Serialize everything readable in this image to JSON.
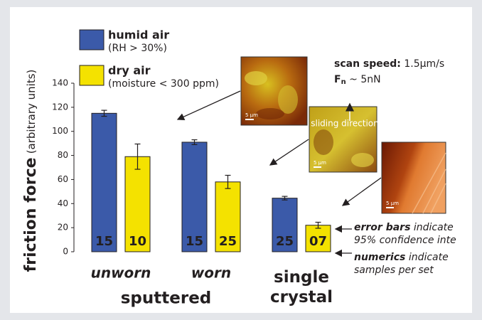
{
  "chart_data": {
    "type": "bar",
    "ylabel": "friction force",
    "ylabel_note": "(arbitrary units)",
    "categories": [
      "unworn",
      "worn",
      null
    ],
    "groups": [
      {
        "label": "sputtered",
        "categories": [
          0,
          1
        ]
      },
      {
        "label": "single crystal",
        "categories": [
          2
        ]
      }
    ],
    "series": [
      {
        "name": "humid air",
        "note": "(RH > 30%)",
        "color": "#3b5aa9",
        "values": [
          115,
          91,
          44.5
        ],
        "errors": [
          2.5,
          2,
          1.5
        ],
        "samples": [
          "15",
          "15",
          "25"
        ]
      },
      {
        "name": "dry air",
        "note": "(moisture < 300 ppm)",
        "color": "#f4e200",
        "values": [
          79,
          58,
          22
        ],
        "errors": [
          10.5,
          5.5,
          2.5
        ],
        "samples": [
          "10",
          "25",
          "07"
        ]
      }
    ],
    "ylim": [
      0,
      140
    ],
    "yticks": [
      0,
      20,
      40,
      60,
      80,
      100,
      120,
      140
    ],
    "annotations": {
      "scan_speed": {
        "label": "scan speed:",
        "value": "1.5µm/s"
      },
      "force": {
        "label": "F",
        "sub": "n",
        "value": "~ 5nN"
      },
      "error_note": {
        "label": "error bars",
        "text": "indicate",
        "line2": "95% confidence inte"
      },
      "numerics_note": {
        "label": "numerics",
        "text": "indicate",
        "line2": "samples per set"
      }
    },
    "images": [
      {
        "scale": "5 µm"
      },
      {
        "scale": "5 µm",
        "note": "sliding direction"
      },
      {
        "scale": "5 µm"
      }
    ]
  }
}
